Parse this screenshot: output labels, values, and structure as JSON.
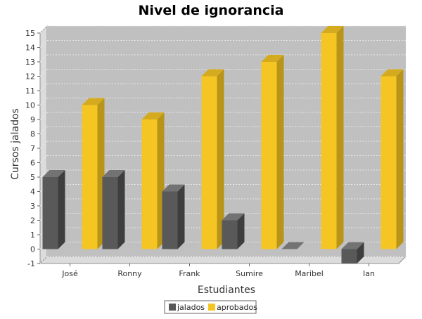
{
  "chart_data": {
    "type": "bar",
    "title": "Nivel de ignorancia",
    "xlabel": "Estudiantes",
    "ylabel": "Cursos jalados",
    "categories": [
      "José",
      "Ronny",
      "Frank",
      "Sumire",
      "Maribel",
      "Ian"
    ],
    "series": [
      {
        "name": "jalados",
        "values": [
          5,
          5,
          4,
          2,
          0,
          -1
        ],
        "color": "#595959",
        "side_color": "#3e3e3e",
        "top_color": "#737373"
      },
      {
        "name": "aprobados",
        "values": [
          10,
          9,
          12,
          13,
          15,
          12
        ],
        "color": "#f5c623",
        "side_color": "#b89418",
        "top_color": "#d4aa1e"
      }
    ],
    "ylim": [
      -1,
      15
    ],
    "yticks": [
      -1,
      0,
      1,
      2,
      3,
      4,
      5,
      6,
      7,
      8,
      9,
      10,
      11,
      12,
      13,
      14,
      15
    ],
    "grid": true,
    "legend_position": "bottom",
    "three_d": true,
    "plot_background": "#c0c0c0"
  }
}
